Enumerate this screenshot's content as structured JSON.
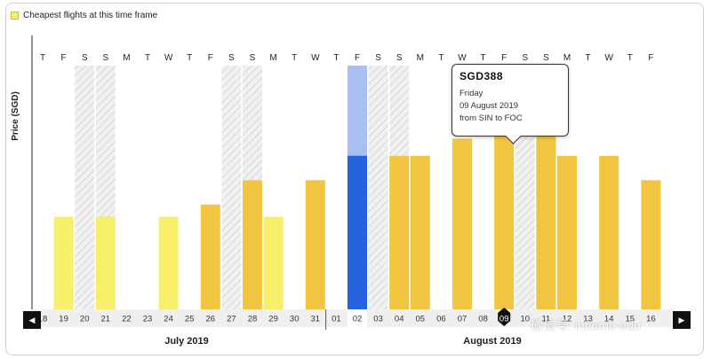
{
  "legend": {
    "label": "Cheapest flights at this time frame"
  },
  "tooltip": {
    "price": "SGD388",
    "day": "Friday",
    "date": "09 August 2019",
    "route": "from SIN to FOC"
  },
  "colors": {
    "cheapest": "#f7ef6a",
    "regular": "#f2c540",
    "selected": "#2462e0",
    "selected_light": "#a8bff2",
    "weekend_hatch": "#d6d6d6"
  },
  "navigation": {
    "prev_icon": "chevron-left-icon",
    "next_icon": "chevron-right-icon"
  },
  "watermark": "微信号: inhome-edu",
  "chart_data": {
    "type": "bar",
    "ylabel": "Price (SGD)",
    "months": [
      {
        "label": "July 2019",
        "start_index": 0
      },
      {
        "label": "August 2019",
        "start_index": 14
      }
    ],
    "weekdays": [
      "T",
      "F",
      "S",
      "S",
      "M",
      "T",
      "W",
      "T",
      "F",
      "S",
      "S",
      "M",
      "T",
      "W",
      "T",
      "F",
      "S",
      "S",
      "M",
      "T",
      "W",
      "T",
      "F",
      "S",
      "S",
      "M",
      "T",
      "W",
      "T",
      "F"
    ],
    "categories": [
      "18",
      "19",
      "20",
      "21",
      "22",
      "23",
      "24",
      "25",
      "26",
      "27",
      "28",
      "29",
      "30",
      "31",
      "01",
      "02",
      "03",
      "04",
      "05",
      "06",
      "07",
      "08",
      "09",
      "10",
      "11",
      "12",
      "13",
      "14",
      "15",
      "16"
    ],
    "values": [
      null,
      0.38,
      null,
      0.38,
      null,
      null,
      0.38,
      null,
      0.43,
      null,
      0.53,
      0.38,
      null,
      0.53,
      null,
      0.63,
      null,
      0.63,
      0.63,
      null,
      0.7,
      null,
      0.82,
      null,
      0.82,
      0.63,
      null,
      0.63,
      null,
      0.53
    ],
    "value_note_units": "relative price (no y-axis scale shown)",
    "cheapest_flags": [
      false,
      true,
      false,
      true,
      false,
      false,
      true,
      false,
      false,
      false,
      false,
      true,
      false,
      false,
      false,
      false,
      false,
      false,
      false,
      false,
      false,
      false,
      false,
      false,
      false,
      false,
      false,
      false,
      false,
      false
    ],
    "weekend_flags": [
      false,
      false,
      true,
      true,
      false,
      false,
      false,
      false,
      false,
      true,
      true,
      false,
      false,
      false,
      false,
      false,
      true,
      true,
      false,
      false,
      false,
      false,
      false,
      true,
      true,
      false,
      false,
      false,
      false,
      false
    ],
    "selected_index": 15,
    "tooltip_index": 22,
    "ylim": [
      0,
      1
    ]
  }
}
